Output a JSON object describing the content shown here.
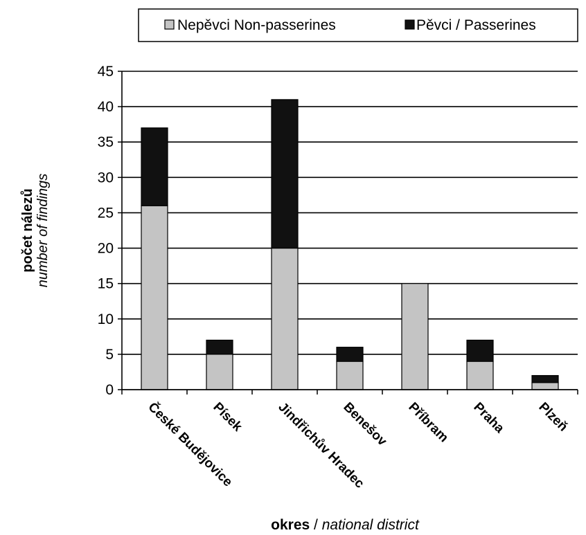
{
  "chart_data": {
    "type": "bar",
    "stacked": true,
    "categories": [
      "České Budějovice",
      "Písek",
      "Jindřichův Hradec",
      "Benešov",
      "Příbram",
      "Praha",
      "Plzeň"
    ],
    "series": [
      {
        "name": "Nepěvci Non-passerines",
        "values": [
          26,
          5,
          20,
          4,
          15,
          4,
          1
        ],
        "color": "#c4c4c4"
      },
      {
        "name": "Pěvci / Passerines",
        "values": [
          11,
          2,
          21,
          2,
          0,
          3,
          1
        ],
        "color": "#111111"
      }
    ],
    "ylim": [
      0,
      45
    ],
    "yticks": [
      "0",
      "5",
      "10",
      "15",
      "20",
      "25",
      "30",
      "35",
      "40",
      "45"
    ],
    "ylabel": {
      "bold": "počet nálezů",
      "italic": "number of findings"
    },
    "xlabel": {
      "bold": "okres",
      "sep": " / ",
      "italic": "national district"
    },
    "grid": true,
    "legend_position": "top-right"
  }
}
